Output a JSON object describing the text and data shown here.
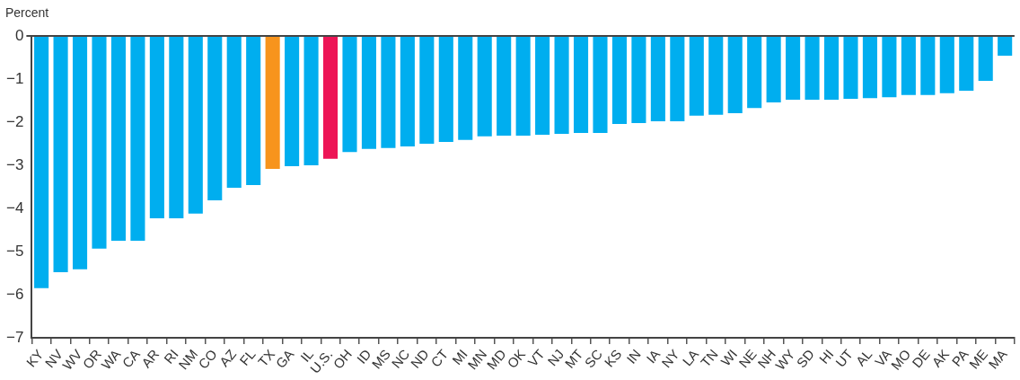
{
  "chart_data": {
    "type": "bar",
    "ylabel": "Percent",
    "categories": [
      "KY",
      "NV",
      "WV",
      "OR",
      "WA",
      "CA",
      "AR",
      "RI",
      "NM",
      "CO",
      "AZ",
      "FL",
      "TX",
      "GA",
      "IL",
      "U.S.",
      "OH",
      "ID",
      "MS",
      "NC",
      "ND",
      "CT",
      "MI",
      "MN",
      "MD",
      "OK",
      "VT",
      "NJ",
      "MT",
      "SC",
      "KS",
      "IN",
      "IA",
      "NY",
      "LA",
      "TN",
      "WI",
      "NE",
      "NH",
      "WY",
      "SD",
      "HI",
      "UT",
      "AL",
      "VA",
      "MO",
      "DE",
      "AK",
      "PA",
      "ME",
      "MA"
    ],
    "values": [
      -5.85,
      -5.48,
      -5.41,
      -4.93,
      -4.75,
      -4.75,
      -4.23,
      -4.23,
      -4.12,
      -3.81,
      -3.52,
      -3.46,
      -3.08,
      -3.02,
      -3.0,
      -2.85,
      -2.69,
      -2.62,
      -2.6,
      -2.56,
      -2.5,
      -2.46,
      -2.41,
      -2.33,
      -2.31,
      -2.31,
      -2.29,
      -2.27,
      -2.25,
      -2.25,
      -2.04,
      -2.02,
      -1.98,
      -1.98,
      -1.85,
      -1.83,
      -1.79,
      -1.67,
      -1.54,
      -1.48,
      -1.48,
      -1.48,
      -1.46,
      -1.44,
      -1.42,
      -1.37,
      -1.37,
      -1.33,
      -1.27,
      -1.04,
      -0.46
    ],
    "colors": [
      "#00aeef",
      "#00aeef",
      "#00aeef",
      "#00aeef",
      "#00aeef",
      "#00aeef",
      "#00aeef",
      "#00aeef",
      "#00aeef",
      "#00aeef",
      "#00aeef",
      "#00aeef",
      "#f7941d",
      "#00aeef",
      "#00aeef",
      "#ed1556",
      "#00aeef",
      "#00aeef",
      "#00aeef",
      "#00aeef",
      "#00aeef",
      "#00aeef",
      "#00aeef",
      "#00aeef",
      "#00aeef",
      "#00aeef",
      "#00aeef",
      "#00aeef",
      "#00aeef",
      "#00aeef",
      "#00aeef",
      "#00aeef",
      "#00aeef",
      "#00aeef",
      "#00aeef",
      "#00aeef",
      "#00aeef",
      "#00aeef",
      "#00aeef",
      "#00aeef",
      "#00aeef",
      "#00aeef",
      "#00aeef",
      "#00aeef",
      "#00aeef",
      "#00aeef",
      "#00aeef",
      "#00aeef",
      "#00aeef",
      "#00aeef",
      "#00aeef"
    ],
    "ylim": [
      -7,
      0
    ],
    "yticks": [
      -7,
      -6,
      -5,
      -4,
      -3,
      -2,
      -1,
      0
    ],
    "grid": false,
    "legend": false
  }
}
